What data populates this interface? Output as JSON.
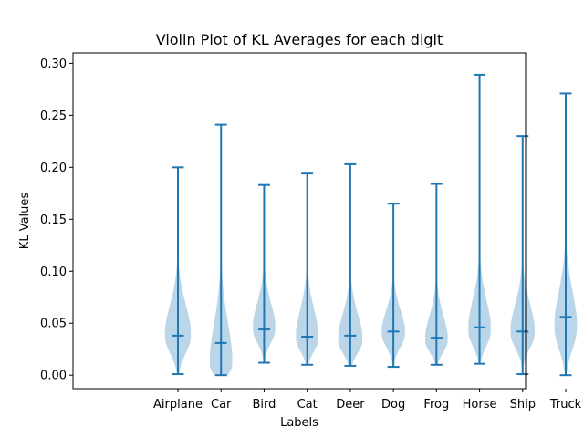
{
  "chart_data": {
    "type": "violin",
    "title": "Violin Plot of KL Averages for each digit",
    "xlabel": "Labels",
    "ylabel": "KL Values",
    "ylim": [
      -0.013,
      0.31
    ],
    "yticks": [
      "0.00",
      "0.05",
      "0.10",
      "0.15",
      "0.20",
      "0.25",
      "0.30"
    ],
    "categories": [
      "Airplane",
      "Car",
      "Bird",
      "Cat",
      "Deer",
      "Dog",
      "Frog",
      "Horse",
      "Ship",
      "Truck"
    ],
    "color": "#1f77b4",
    "grid": false,
    "series": [
      {
        "min": 0.001,
        "median": 0.038,
        "max": 0.2,
        "peak": 0.037,
        "spread_low": 0.016,
        "spread_high": 0.03,
        "width": 0.3
      },
      {
        "min": 0.0,
        "median": 0.031,
        "max": 0.241,
        "peak": 0.01,
        "spread_low": 0.01,
        "spread_high": 0.04,
        "width": 0.26
      },
      {
        "min": 0.012,
        "median": 0.044,
        "max": 0.183,
        "peak": 0.044,
        "spread_low": 0.013,
        "spread_high": 0.025,
        "width": 0.26
      },
      {
        "min": 0.01,
        "median": 0.037,
        "max": 0.194,
        "peak": 0.035,
        "spread_low": 0.012,
        "spread_high": 0.028,
        "width": 0.26
      },
      {
        "min": 0.009,
        "median": 0.038,
        "max": 0.203,
        "peak": 0.033,
        "spread_low": 0.012,
        "spread_high": 0.026,
        "width": 0.28
      },
      {
        "min": 0.008,
        "median": 0.042,
        "max": 0.165,
        "peak": 0.04,
        "spread_low": 0.013,
        "spread_high": 0.022,
        "width": 0.27
      },
      {
        "min": 0.01,
        "median": 0.036,
        "max": 0.184,
        "peak": 0.033,
        "spread_low": 0.011,
        "spread_high": 0.024,
        "width": 0.26
      },
      {
        "min": 0.011,
        "median": 0.046,
        "max": 0.289,
        "peak": 0.042,
        "spread_low": 0.014,
        "spread_high": 0.03,
        "width": 0.26
      },
      {
        "min": 0.001,
        "median": 0.042,
        "max": 0.23,
        "peak": 0.04,
        "spread_low": 0.014,
        "spread_high": 0.028,
        "width": 0.28
      },
      {
        "min": 0.0,
        "median": 0.056,
        "max": 0.271,
        "peak": 0.045,
        "spread_low": 0.02,
        "spread_high": 0.035,
        "width": 0.26
      }
    ]
  }
}
